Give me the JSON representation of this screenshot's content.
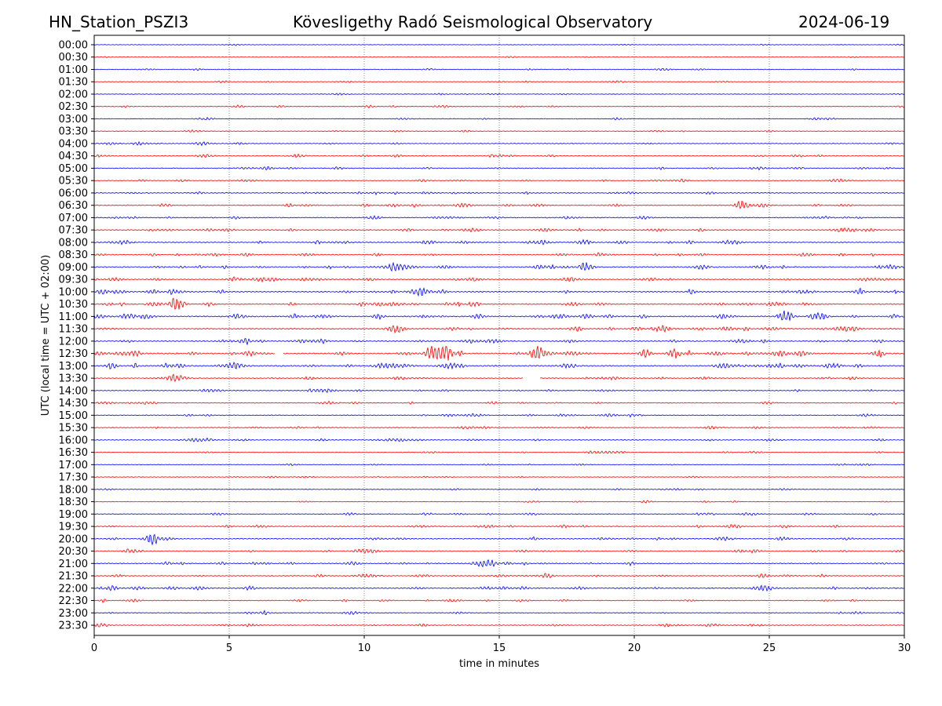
{
  "header": {
    "station": "HN_Station_PSZI3",
    "observatory": "Kövesligethy Radó Seismological Observatory",
    "date": "2024-06-19"
  },
  "chart_data": {
    "type": "line",
    "title": "Kövesligethy Radó Seismological Observatory",
    "xlabel": "time in minutes",
    "ylabel": "UTC (local time = UTC + 02:00)",
    "xlim": [
      0,
      30
    ],
    "xticks": [
      "0",
      "5",
      "10",
      "15",
      "20",
      "25",
      "30"
    ],
    "grid": "vertical dotted at 5-minute intervals",
    "colors": {
      "hour": "#0000ff",
      "half_hour": "#ff0000"
    },
    "rows": [
      "00:00",
      "00:30",
      "01:00",
      "01:30",
      "02:00",
      "02:30",
      "03:00",
      "03:30",
      "04:00",
      "04:30",
      "05:00",
      "05:30",
      "06:00",
      "06:30",
      "07:00",
      "07:30",
      "08:00",
      "08:30",
      "09:00",
      "09:30",
      "10:00",
      "10:30",
      "11:00",
      "11:30",
      "12:00",
      "12:30",
      "13:00",
      "13:30",
      "14:00",
      "14:30",
      "15:00",
      "15:30",
      "16:00",
      "16:30",
      "17:00",
      "17:30",
      "18:00",
      "18:30",
      "19:00",
      "19:30",
      "20:00",
      "20:30",
      "21:00",
      "21:30",
      "22:00",
      "22:30",
      "23:00",
      "23:30"
    ],
    "activity": [
      0.1,
      0.1,
      0.2,
      0.2,
      0.15,
      0.25,
      0.2,
      0.2,
      0.3,
      0.35,
      0.35,
      0.3,
      0.4,
      0.45,
      0.45,
      0.5,
      0.5,
      0.45,
      0.6,
      0.55,
      0.6,
      0.6,
      0.7,
      0.6,
      0.55,
      0.8,
      0.75,
      0.4,
      0.35,
      0.35,
      0.35,
      0.35,
      0.35,
      0.25,
      0.2,
      0.2,
      0.2,
      0.2,
      0.3,
      0.4,
      0.45,
      0.45,
      0.5,
      0.4,
      0.55,
      0.35,
      0.3,
      0.35
    ],
    "events": [
      {
        "row": "12:30",
        "minute": 13.0,
        "amplitude": 12
      },
      {
        "row": "12:30",
        "minute": 12.5,
        "amplitude": 9
      },
      {
        "row": "12:30",
        "minute": 16.4,
        "amplitude": 9
      },
      {
        "row": "12:30",
        "minute": 21.5,
        "amplitude": 6
      },
      {
        "row": "06:30",
        "minute": 24.0,
        "amplitude": 6
      },
      {
        "row": "10:30",
        "minute": 3.1,
        "amplitude": 8
      },
      {
        "row": "11:00",
        "minute": 25.6,
        "amplitude": 7
      },
      {
        "row": "11:00",
        "minute": 26.8,
        "amplitude": 6
      },
      {
        "row": "11:30",
        "minute": 11.2,
        "amplitude": 6
      },
      {
        "row": "13:30",
        "minute": 3.0,
        "amplitude": 6
      },
      {
        "row": "20:00",
        "minute": 2.1,
        "amplitude": 7
      },
      {
        "row": "09:00",
        "minute": 18.2,
        "amplitude": 5
      },
      {
        "row": "09:00",
        "minute": 11.1,
        "amplitude": 5
      }
    ],
    "gaps": [
      {
        "row": "12:30",
        "from": 6.7,
        "to": 7.0
      },
      {
        "row": "13:30",
        "from": 15.9,
        "to": 16.5
      }
    ]
  }
}
